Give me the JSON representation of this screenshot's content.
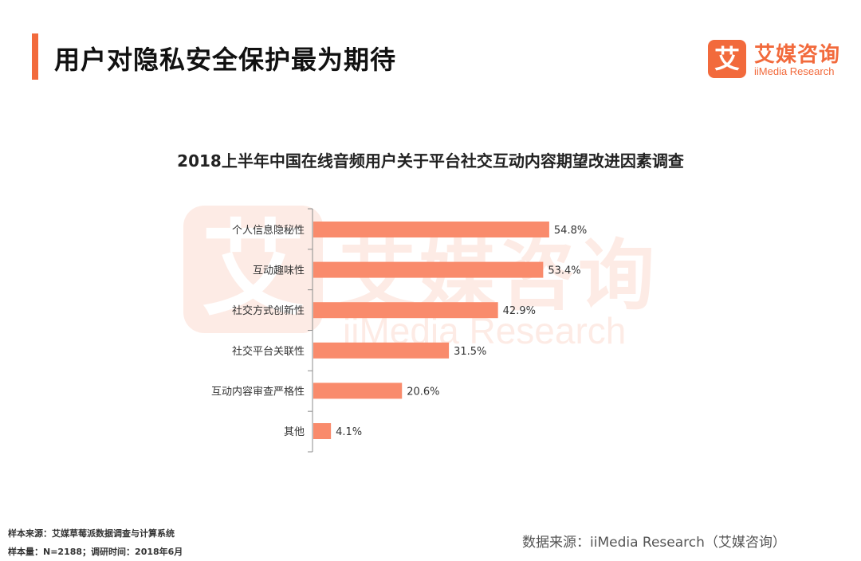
{
  "header": {
    "title": "用户对隐私安全保护最为期待",
    "accent_color": "#f26a3c"
  },
  "brand": {
    "logo_char": "艾",
    "name_cn": "艾媒咨询",
    "name_en": "iiMedia Research"
  },
  "chart_data": {
    "type": "bar",
    "orientation": "horizontal",
    "title": "2018上半年中国在线音频用户关于平台社交互动内容期望改进因素调查",
    "categories": [
      "个人信息隐秘性",
      "互动趣味性",
      "社交方式创新性",
      "社交平台关联性",
      "互动内容审查严格性",
      "其他"
    ],
    "values": [
      54.8,
      53.4,
      42.9,
      31.5,
      20.6,
      4.1
    ],
    "value_labels": [
      "54.8%",
      "53.4%",
      "42.9%",
      "31.5%",
      "20.6%",
      "4.1%"
    ],
    "unit": "%",
    "xlim": [
      0,
      60
    ],
    "bar_color": "#f98b6c",
    "xlabel": "",
    "ylabel": ""
  },
  "footer": {
    "sample_source": "样本来源：艾媒草莓派数据调查与计算系统",
    "sample_info": "样本量：N=2188；调研时间：2018年6月",
    "data_source": "数据来源：iiMedia Research（艾媒咨询）"
  }
}
